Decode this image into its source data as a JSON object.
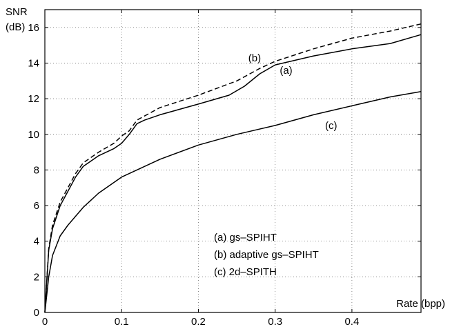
{
  "chart_data": {
    "type": "line",
    "ylabel_line1": "SNR",
    "ylabel_line2": "(dB)",
    "xlabel": "Rate (bpp)",
    "xlim": [
      0,
      0.49
    ],
    "ylim": [
      0,
      17
    ],
    "grid": true,
    "xticks": [
      0,
      0.1,
      0.2,
      0.3,
      0.4
    ],
    "xtick_labels": [
      "0",
      "0.1",
      "0.2",
      "0.3",
      "0.4"
    ],
    "yticks": [
      0,
      2,
      4,
      6,
      8,
      10,
      12,
      14,
      16
    ],
    "ytick_labels": [
      "0",
      "2",
      "4",
      "6",
      "8",
      "10",
      "12",
      "14",
      "16"
    ],
    "legend_placement": "lower-right inside plot",
    "legend": [
      "(a)  gs–SPIHT",
      "(b)  adaptive gs–SPIHT",
      "(c)  2d–SPITH"
    ],
    "series": [
      {
        "name": "(a)",
        "style": "solid",
        "color": "#000000",
        "x": [
          0,
          0.005,
          0.01,
          0.02,
          0.03,
          0.04,
          0.05,
          0.07,
          0.09,
          0.1,
          0.11,
          0.12,
          0.13,
          0.15,
          0.2,
          0.24,
          0.26,
          0.28,
          0.3,
          0.35,
          0.4,
          0.45,
          0.49
        ],
        "y": [
          0,
          3.5,
          4.7,
          6.0,
          6.8,
          7.6,
          8.2,
          8.8,
          9.2,
          9.5,
          10.0,
          10.6,
          10.8,
          11.1,
          11.7,
          12.2,
          12.7,
          13.4,
          13.9,
          14.4,
          14.8,
          15.1,
          15.6
        ]
      },
      {
        "name": "(b)",
        "style": "dashed",
        "color": "#000000",
        "x": [
          0,
          0.005,
          0.01,
          0.02,
          0.03,
          0.04,
          0.05,
          0.07,
          0.09,
          0.1,
          0.11,
          0.12,
          0.15,
          0.2,
          0.25,
          0.28,
          0.3,
          0.35,
          0.4,
          0.45,
          0.49
        ],
        "y": [
          0,
          3.6,
          4.9,
          6.2,
          7.0,
          7.8,
          8.4,
          9.0,
          9.5,
          9.9,
          10.2,
          10.8,
          11.5,
          12.2,
          13.0,
          13.7,
          14.1,
          14.8,
          15.4,
          15.8,
          16.2
        ]
      },
      {
        "name": "(c)",
        "style": "solid",
        "color": "#000000",
        "x": [
          0,
          0.005,
          0.01,
          0.02,
          0.03,
          0.05,
          0.07,
          0.1,
          0.15,
          0.2,
          0.25,
          0.3,
          0.35,
          0.4,
          0.45,
          0.49
        ],
        "y": [
          0,
          2.0,
          3.2,
          4.3,
          4.9,
          5.9,
          6.7,
          7.6,
          8.6,
          9.4,
          10.0,
          10.5,
          11.1,
          11.6,
          12.1,
          12.4
        ]
      }
    ],
    "annotations": [
      {
        "text": "(b)",
        "x": 0.265,
        "y": 14.1
      },
      {
        "text": "(a)",
        "x": 0.306,
        "y": 13.4
      },
      {
        "text": "(c)",
        "x": 0.365,
        "y": 10.3
      }
    ]
  }
}
